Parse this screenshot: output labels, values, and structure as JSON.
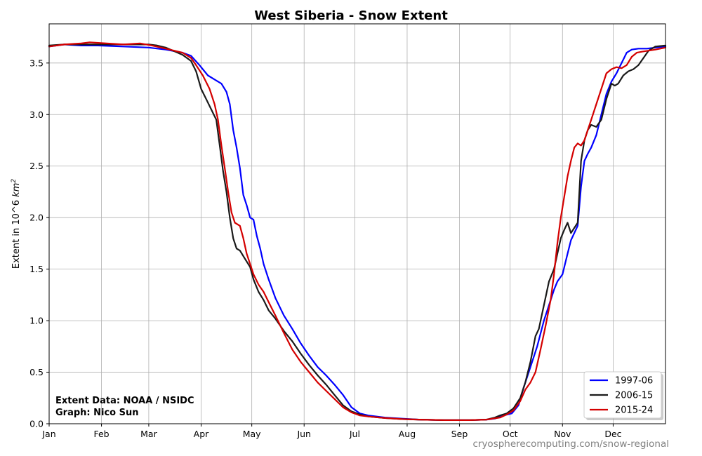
{
  "chart_data": {
    "type": "line",
    "title": "West Siberia - Snow Extent",
    "ylabel": "Extent in 10^6",
    "ylabel_unit": "km",
    "ylabel_exp": "2",
    "xlabel": "",
    "x_tick_labels": [
      "Jan",
      "Feb",
      "Mar",
      "Apr",
      "May",
      "Jun",
      "Jul",
      "Aug",
      "Sep",
      "Oct",
      "Nov",
      "Dec"
    ],
    "y_ticks": [
      "0.0",
      "0.5",
      "1.0",
      "1.5",
      "2.0",
      "2.5",
      "3.0",
      "3.5"
    ],
    "ylim": [
      0,
      3.88
    ],
    "xlim_days": [
      1,
      366
    ],
    "grid": true,
    "legend_position": "lower-right",
    "series": [
      {
        "name": "1997-06",
        "color": "#0000ff",
        "points": [
          [
            1,
            3.66
          ],
          [
            10,
            3.68
          ],
          [
            20,
            3.67
          ],
          [
            30,
            3.67
          ],
          [
            45,
            3.66
          ],
          [
            60,
            3.65
          ],
          [
            70,
            3.63
          ],
          [
            80,
            3.6
          ],
          [
            85,
            3.57
          ],
          [
            90,
            3.48
          ],
          [
            95,
            3.38
          ],
          [
            100,
            3.33
          ],
          [
            103,
            3.3
          ],
          [
            106,
            3.22
          ],
          [
            108,
            3.1
          ],
          [
            110,
            2.85
          ],
          [
            112,
            2.68
          ],
          [
            114,
            2.48
          ],
          [
            116,
            2.22
          ],
          [
            118,
            2.12
          ],
          [
            120,
            2.0
          ],
          [
            122,
            1.98
          ],
          [
            124,
            1.82
          ],
          [
            126,
            1.7
          ],
          [
            128,
            1.55
          ],
          [
            131,
            1.4
          ],
          [
            135,
            1.22
          ],
          [
            140,
            1.05
          ],
          [
            145,
            0.92
          ],
          [
            150,
            0.78
          ],
          [
            155,
            0.66
          ],
          [
            160,
            0.55
          ],
          [
            165,
            0.47
          ],
          [
            170,
            0.38
          ],
          [
            175,
            0.28
          ],
          [
            180,
            0.16
          ],
          [
            185,
            0.1
          ],
          [
            190,
            0.08
          ],
          [
            200,
            0.06
          ],
          [
            210,
            0.05
          ],
          [
            220,
            0.04
          ],
          [
            235,
            0.035
          ],
          [
            250,
            0.035
          ],
          [
            260,
            0.04
          ],
          [
            265,
            0.05
          ],
          [
            270,
            0.08
          ],
          [
            275,
            0.1
          ],
          [
            279,
            0.18
          ],
          [
            282,
            0.35
          ],
          [
            286,
            0.55
          ],
          [
            290,
            0.75
          ],
          [
            294,
            1.0
          ],
          [
            297,
            1.15
          ],
          [
            300,
            1.3
          ],
          [
            302,
            1.38
          ],
          [
            305,
            1.45
          ],
          [
            308,
            1.65
          ],
          [
            310,
            1.78
          ],
          [
            312,
            1.85
          ],
          [
            314,
            1.92
          ],
          [
            316,
            2.3
          ],
          [
            318,
            2.55
          ],
          [
            320,
            2.62
          ],
          [
            322,
            2.68
          ],
          [
            325,
            2.8
          ],
          [
            328,
            3.0
          ],
          [
            331,
            3.2
          ],
          [
            334,
            3.32
          ],
          [
            337,
            3.4
          ],
          [
            340,
            3.5
          ],
          [
            343,
            3.6
          ],
          [
            346,
            3.63
          ],
          [
            350,
            3.64
          ],
          [
            355,
            3.64
          ],
          [
            360,
            3.65
          ],
          [
            366,
            3.66
          ]
        ]
      },
      {
        "name": "2006-15",
        "color": "#1a1a1a",
        "points": [
          [
            1,
            3.67
          ],
          [
            10,
            3.68
          ],
          [
            20,
            3.68
          ],
          [
            30,
            3.68
          ],
          [
            45,
            3.68
          ],
          [
            60,
            3.68
          ],
          [
            65,
            3.67
          ],
          [
            70,
            3.65
          ],
          [
            80,
            3.58
          ],
          [
            85,
            3.52
          ],
          [
            88,
            3.42
          ],
          [
            91,
            3.25
          ],
          [
            94,
            3.15
          ],
          [
            97,
            3.05
          ],
          [
            100,
            2.95
          ],
          [
            102,
            2.7
          ],
          [
            104,
            2.45
          ],
          [
            106,
            2.25
          ],
          [
            108,
            2.0
          ],
          [
            110,
            1.8
          ],
          [
            112,
            1.7
          ],
          [
            114,
            1.68
          ],
          [
            117,
            1.6
          ],
          [
            120,
            1.52
          ],
          [
            122,
            1.4
          ],
          [
            125,
            1.28
          ],
          [
            128,
            1.2
          ],
          [
            131,
            1.1
          ],
          [
            135,
            1.02
          ],
          [
            140,
            0.9
          ],
          [
            145,
            0.8
          ],
          [
            150,
            0.68
          ],
          [
            155,
            0.57
          ],
          [
            160,
            0.47
          ],
          [
            165,
            0.38
          ],
          [
            170,
            0.28
          ],
          [
            175,
            0.18
          ],
          [
            180,
            0.12
          ],
          [
            185,
            0.09
          ],
          [
            190,
            0.07
          ],
          [
            200,
            0.055
          ],
          [
            210,
            0.045
          ],
          [
            220,
            0.04
          ],
          [
            235,
            0.035
          ],
          [
            250,
            0.035
          ],
          [
            260,
            0.04
          ],
          [
            265,
            0.06
          ],
          [
            268,
            0.08
          ],
          [
            272,
            0.1
          ],
          [
            276,
            0.15
          ],
          [
            280,
            0.25
          ],
          [
            283,
            0.4
          ],
          [
            286,
            0.6
          ],
          [
            289,
            0.85
          ],
          [
            291,
            0.92
          ],
          [
            294,
            1.15
          ],
          [
            297,
            1.38
          ],
          [
            300,
            1.5
          ],
          [
            302,
            1.65
          ],
          [
            304,
            1.8
          ],
          [
            306,
            1.88
          ],
          [
            308,
            1.95
          ],
          [
            310,
            1.85
          ],
          [
            312,
            1.9
          ],
          [
            314,
            1.95
          ],
          [
            316,
            2.55
          ],
          [
            318,
            2.75
          ],
          [
            320,
            2.85
          ],
          [
            322,
            2.9
          ],
          [
            325,
            2.88
          ],
          [
            328,
            2.95
          ],
          [
            331,
            3.15
          ],
          [
            334,
            3.3
          ],
          [
            336,
            3.28
          ],
          [
            338,
            3.3
          ],
          [
            341,
            3.38
          ],
          [
            344,
            3.42
          ],
          [
            347,
            3.44
          ],
          [
            350,
            3.48
          ],
          [
            353,
            3.55
          ],
          [
            356,
            3.62
          ],
          [
            360,
            3.66
          ],
          [
            366,
            3.67
          ]
        ]
      },
      {
        "name": "2015-24",
        "color": "#d40000",
        "points": [
          [
            1,
            3.66
          ],
          [
            10,
            3.68
          ],
          [
            20,
            3.69
          ],
          [
            25,
            3.7
          ],
          [
            35,
            3.69
          ],
          [
            45,
            3.68
          ],
          [
            55,
            3.69
          ],
          [
            62,
            3.67
          ],
          [
            70,
            3.64
          ],
          [
            80,
            3.6
          ],
          [
            85,
            3.55
          ],
          [
            88,
            3.48
          ],
          [
            92,
            3.38
          ],
          [
            96,
            3.25
          ],
          [
            99,
            3.1
          ],
          [
            101,
            2.95
          ],
          [
            103,
            2.7
          ],
          [
            105,
            2.48
          ],
          [
            107,
            2.25
          ],
          [
            109,
            2.05
          ],
          [
            111,
            1.95
          ],
          [
            114,
            1.92
          ],
          [
            116,
            1.8
          ],
          [
            118,
            1.65
          ],
          [
            120,
            1.55
          ],
          [
            122,
            1.45
          ],
          [
            125,
            1.35
          ],
          [
            128,
            1.28
          ],
          [
            131,
            1.18
          ],
          [
            135,
            1.05
          ],
          [
            140,
            0.88
          ],
          [
            145,
            0.72
          ],
          [
            150,
            0.6
          ],
          [
            155,
            0.5
          ],
          [
            160,
            0.4
          ],
          [
            165,
            0.32
          ],
          [
            170,
            0.24
          ],
          [
            175,
            0.16
          ],
          [
            180,
            0.11
          ],
          [
            185,
            0.08
          ],
          [
            190,
            0.07
          ],
          [
            200,
            0.055
          ],
          [
            210,
            0.045
          ],
          [
            220,
            0.04
          ],
          [
            235,
            0.035
          ],
          [
            250,
            0.035
          ],
          [
            260,
            0.04
          ],
          [
            268,
            0.06
          ],
          [
            272,
            0.09
          ],
          [
            276,
            0.13
          ],
          [
            280,
            0.22
          ],
          [
            283,
            0.33
          ],
          [
            286,
            0.4
          ],
          [
            289,
            0.5
          ],
          [
            292,
            0.72
          ],
          [
            295,
            0.95
          ],
          [
            298,
            1.2
          ],
          [
            300,
            1.45
          ],
          [
            302,
            1.75
          ],
          [
            304,
            2.0
          ],
          [
            306,
            2.2
          ],
          [
            308,
            2.4
          ],
          [
            310,
            2.55
          ],
          [
            312,
            2.68
          ],
          [
            314,
            2.72
          ],
          [
            316,
            2.7
          ],
          [
            318,
            2.75
          ],
          [
            320,
            2.85
          ],
          [
            322,
            2.95
          ],
          [
            325,
            3.1
          ],
          [
            328,
            3.25
          ],
          [
            331,
            3.4
          ],
          [
            334,
            3.44
          ],
          [
            337,
            3.46
          ],
          [
            340,
            3.45
          ],
          [
            343,
            3.48
          ],
          [
            346,
            3.56
          ],
          [
            349,
            3.6
          ],
          [
            352,
            3.61
          ],
          [
            356,
            3.62
          ],
          [
            360,
            3.63
          ],
          [
            366,
            3.65
          ]
        ]
      }
    ]
  },
  "credits": {
    "line1": "Extent Data: NOAA / NSIDC",
    "line2": "Graph: Nico Sun"
  },
  "source_url": "cryospherecomputing.com/snow-regional"
}
